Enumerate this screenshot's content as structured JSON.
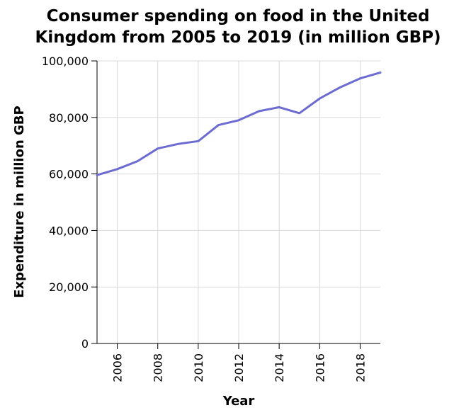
{
  "chart_data": {
    "type": "line",
    "title_lines": [
      "Consumer spending on food in the United",
      "Kingdom from 2005 to 2019 (in million GBP)"
    ],
    "xlabel": "Year",
    "ylabel": "Expenditure in million GBP",
    "xlim": [
      2005,
      2019
    ],
    "ylim": [
      0,
      100000
    ],
    "x_ticks": [
      2006,
      2008,
      2010,
      2012,
      2014,
      2016,
      2018
    ],
    "y_ticks": [
      0,
      20000,
      40000,
      60000,
      80000,
      100000
    ],
    "y_tick_labels": [
      "0",
      "20,000",
      "40,000",
      "60,000",
      "80,000",
      "100,000"
    ],
    "grid": true,
    "line_color": "#6b6bd1",
    "series": [
      {
        "x": [
          2005,
          2006,
          2007,
          2008,
          2009,
          2010,
          2011,
          2012,
          2013,
          2014,
          2015,
          2016,
          2017,
          2018,
          2019
        ],
        "values": [
          59600,
          61700,
          64500,
          69000,
          70600,
          71600,
          77300,
          79000,
          82200,
          83600,
          81500,
          86700,
          90600,
          93800,
          95900
        ]
      }
    ]
  }
}
